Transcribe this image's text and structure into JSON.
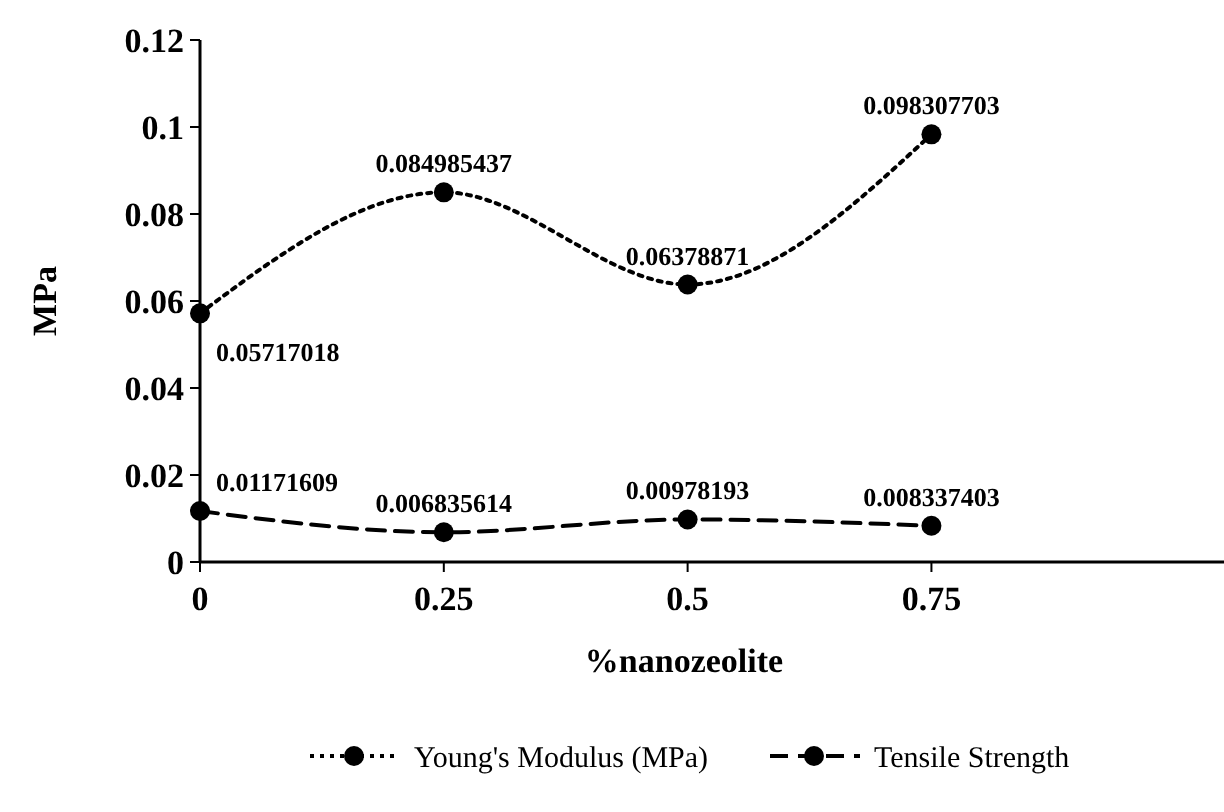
{
  "chart_data": {
    "type": "line",
    "xlabel": "%nanozeolite",
    "ylabel": "MPa",
    "x": [
      0,
      0.25,
      0.5,
      0.75
    ],
    "xlim": [
      0,
      1.05
    ],
    "xticks": [
      0,
      0.25,
      0.5,
      0.75
    ],
    "ylim": [
      0,
      0.12
    ],
    "yticks": [
      0,
      0.02,
      0.04,
      0.06,
      0.08,
      0.1,
      0.12
    ],
    "series": [
      {
        "name": "Young's Modulus (MPa)",
        "color": "#000000",
        "values": [
          0.05717018,
          0.084985437,
          0.06378871,
          0.098307703
        ],
        "line_style": "dotted"
      },
      {
        "name": "Tensile Strength",
        "color": "#000000",
        "values": [
          0.01171609,
          0.006835614,
          0.00978193,
          0.008337403
        ],
        "line_style": "dashed"
      }
    ],
    "marker": "circle",
    "data_labels": true,
    "grid": false,
    "legend": "bottom"
  }
}
